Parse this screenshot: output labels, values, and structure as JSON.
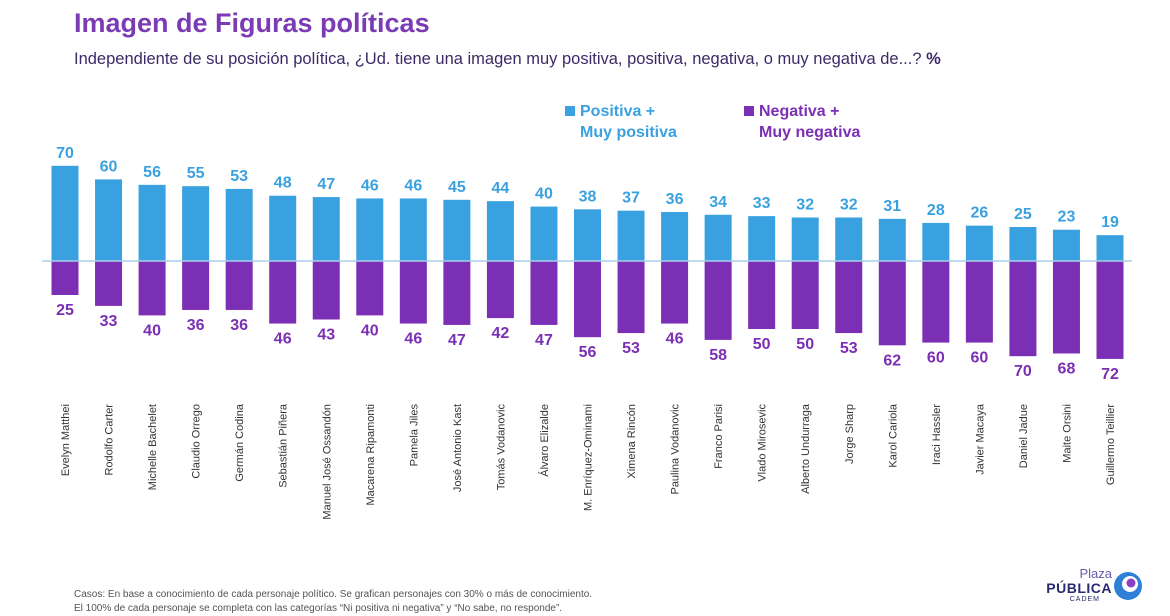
{
  "title": "Imagen de Figuras políticas",
  "subtitle": "Independiente de su posición política, ¿Ud. tiene una imagen muy positiva, positiva, negativa, o muy negativa de...?",
  "unit": "%",
  "legend": {
    "positive": "Positiva +\nMuy positiva",
    "negative": "Negativa +\nMuy negativa"
  },
  "colors": {
    "positive": "#3aa1e0",
    "negative": "#7b2fb4",
    "title": "#7a3bb4",
    "baseline": "#a9cde8"
  },
  "footnote": {
    "line1": "Casos: En base a conocimiento de cada personaje político. Se grafican personajes con 30% o más de conocimiento.",
    "line2": "El 100% de cada personaje se completa con las categorías “Ni positiva ni negativa” y “No sabe, no responde”."
  },
  "logo": {
    "line1": "Plaza",
    "line2": "PÚBLICA",
    "line3": "CADEM"
  },
  "chart_data": {
    "type": "bar",
    "title": "Imagen de Figuras políticas",
    "categories": [
      "Evelyn Matthei",
      "Rodolfo Carter",
      "Michelle Bachelet",
      "Claudio Orrego",
      "Germán Codina",
      "Sebastián Piñera",
      "Manuel José Ossandón",
      "Macarena Ripamonti",
      "Pamela Jiles",
      "José Antonio Kast",
      "Tomás Vodanovic",
      "Álvaro Elizalde",
      "M. Enríquez-Ominami",
      "Ximena Rincón",
      "Paulina Vodanovic",
      "Franco Parisi",
      "Vlado Mirosevic",
      "Alberto Undurraga",
      "Jorge Sharp",
      "Karol Cariola",
      "Iraci Hassler",
      "Javier Macaya",
      "Daniel Jadue",
      "Maite Orsini",
      "Guillermo Teillier"
    ],
    "series": [
      {
        "name": "Positiva + Muy positiva",
        "values": [
          70,
          60,
          56,
          55,
          53,
          48,
          47,
          46,
          46,
          45,
          44,
          40,
          38,
          37,
          36,
          34,
          33,
          32,
          32,
          31,
          28,
          26,
          25,
          23,
          19
        ]
      },
      {
        "name": "Negativa + Muy negativa",
        "values": [
          25,
          33,
          40,
          36,
          36,
          46,
          43,
          40,
          46,
          47,
          42,
          47,
          56,
          53,
          46,
          58,
          50,
          50,
          53,
          62,
          60,
          60,
          70,
          68,
          72
        ]
      }
    ],
    "ylim": [
      -72,
      70
    ],
    "grid": false,
    "legend_position": "top"
  }
}
